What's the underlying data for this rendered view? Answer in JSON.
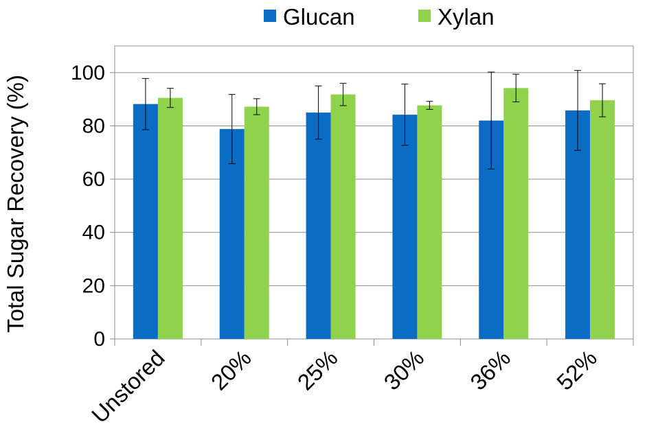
{
  "chart_data": {
    "type": "bar",
    "title": "",
    "xlabel": "",
    "ylabel": "Total Sugar Recovery (%)",
    "ylim": [
      0,
      110
    ],
    "yticks": [
      0,
      20,
      40,
      60,
      80,
      100
    ],
    "grid": true,
    "legend_position": "top",
    "categories": [
      "Unstored",
      "20%",
      "25%",
      "30%",
      "36%",
      "52%"
    ],
    "series": [
      {
        "name": "Glucan",
        "color": "#0a6cc2",
        "values": [
          88.2,
          78.8,
          85.0,
          84.2,
          82.0,
          85.8
        ],
        "error": [
          9.6,
          13.0,
          10.0,
          11.5,
          18.2,
          15.0
        ]
      },
      {
        "name": "Xylan",
        "color": "#8fd24c",
        "values": [
          90.5,
          87.2,
          91.8,
          87.7,
          94.2,
          89.6
        ],
        "error": [
          3.6,
          3.0,
          4.2,
          1.5,
          5.2,
          6.2
        ]
      }
    ]
  }
}
